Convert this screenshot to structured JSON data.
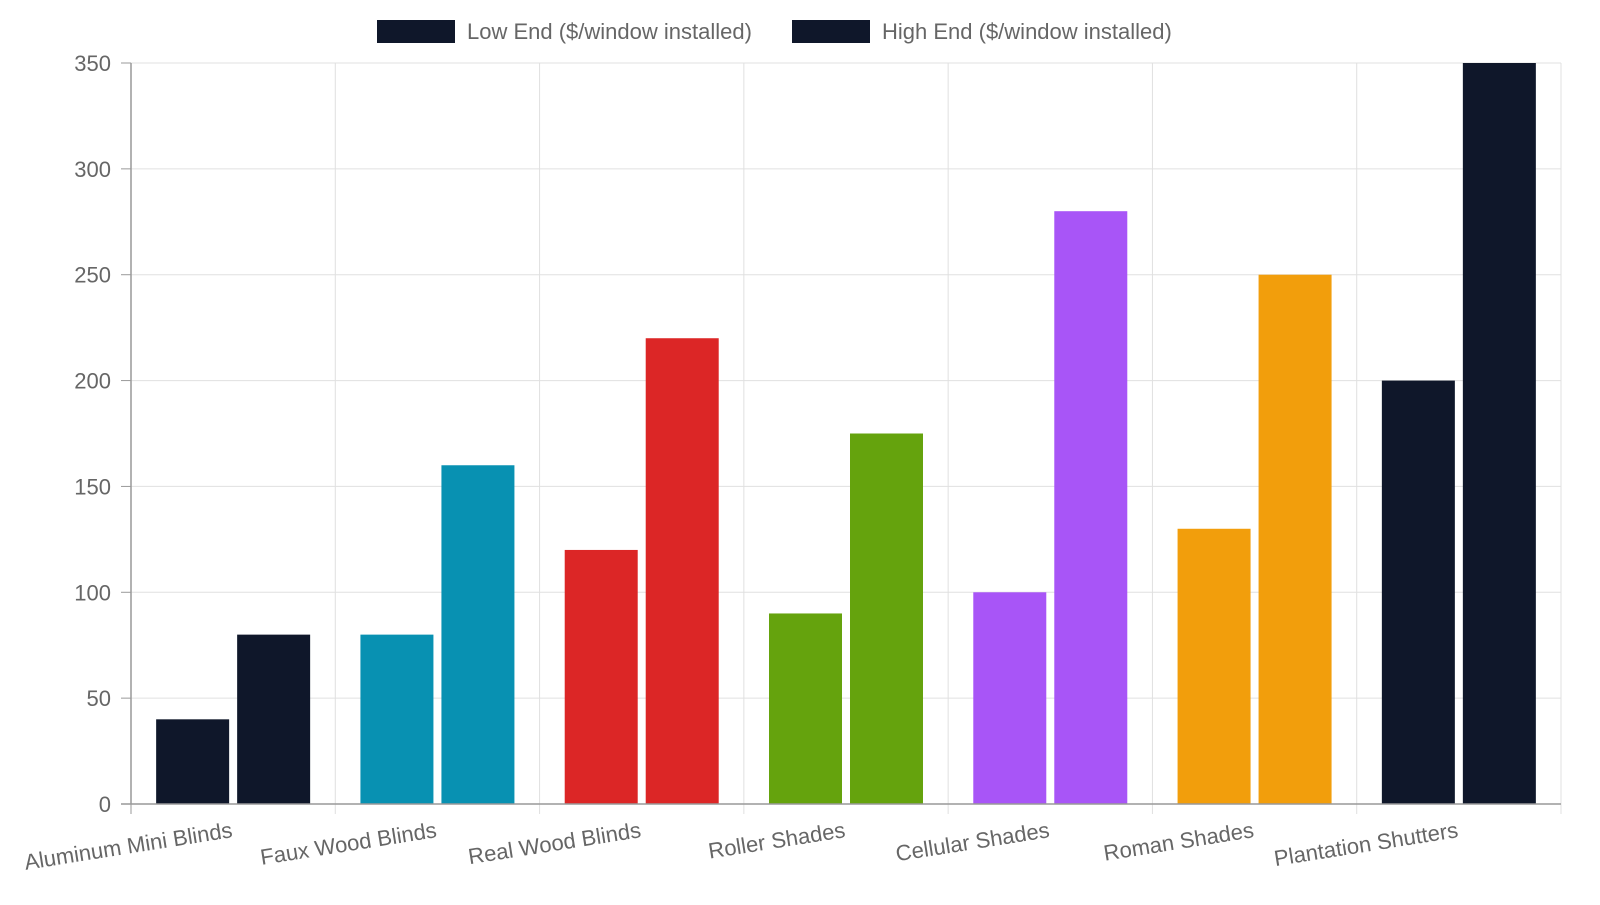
{
  "chart_data": {
    "type": "bar",
    "title": "",
    "xlabel": "",
    "ylabel": "",
    "ylim": [
      0,
      350
    ],
    "yticks": [
      0,
      50,
      100,
      150,
      200,
      250,
      300,
      350
    ],
    "grid": true,
    "legend_position": "top",
    "categories": [
      "Aluminum Mini Blinds",
      "Faux Wood Blinds",
      "Real Wood Blinds",
      "Roller Shades",
      "Cellular Shades",
      "Roman Shades",
      "Plantation Shutters"
    ],
    "category_colors": [
      "#0f172a",
      "#0891b2",
      "#dc2626",
      "#65a30d",
      "#a855f7",
      "#f29e0c",
      "#0f172a"
    ],
    "legend_color": "#0f172a",
    "series": [
      {
        "name": "Low End ($/window installed)",
        "values": [
          40,
          80,
          120,
          90,
          100,
          130,
          200
        ]
      },
      {
        "name": "High End ($/window installed)",
        "values": [
          80,
          160,
          220,
          175,
          280,
          250,
          350
        ]
      }
    ]
  }
}
